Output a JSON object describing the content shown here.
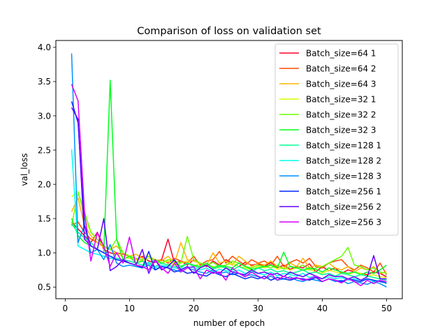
{
  "chart_data": {
    "type": "line",
    "title": "Comparison of loss on validation set",
    "xlabel": "number of epoch",
    "ylabel": "val_loss",
    "xlim": [
      -1.45,
      52.45
    ],
    "ylim": [
      0.33,
      4.1
    ],
    "xticks": [
      0,
      10,
      20,
      30,
      40,
      50
    ],
    "xtick_labels": [
      "0",
      "10",
      "20",
      "30",
      "40",
      "50"
    ],
    "yticks": [
      0.5,
      1.0,
      1.5,
      2.0,
      2.5,
      3.0,
      3.5,
      4.0
    ],
    "ytick_labels": [
      "0.5",
      "1.0",
      "1.5",
      "2.0",
      "2.5",
      "3.0",
      "3.5",
      "4.0"
    ],
    "grid": false,
    "legend_position": "top-right",
    "x": [
      1,
      2,
      3,
      4,
      5,
      6,
      7,
      8,
      9,
      10,
      11,
      12,
      13,
      14,
      15,
      16,
      17,
      18,
      19,
      20,
      21,
      22,
      23,
      24,
      25,
      26,
      27,
      28,
      29,
      30,
      31,
      32,
      33,
      34,
      35,
      36,
      37,
      38,
      39,
      40,
      41,
      42,
      43,
      44,
      45,
      46,
      47,
      48,
      49,
      50
    ],
    "series": [
      {
        "name": "Batch_size=64 1",
        "color": "#ff0029",
        "values": [
          1.45,
          1.35,
          1.25,
          1.15,
          1.3,
          1.05,
          1.0,
          0.98,
          0.95,
          0.92,
          0.9,
          0.95,
          0.88,
          0.86,
          0.9,
          1.2,
          0.85,
          0.88,
          0.82,
          0.9,
          0.85,
          0.8,
          0.88,
          0.82,
          0.9,
          0.85,
          0.8,
          0.86,
          0.82,
          0.84,
          0.8,
          0.86,
          0.78,
          0.82,
          0.76,
          0.8,
          0.78,
          0.84,
          0.72,
          0.8,
          0.74,
          0.78,
          0.7,
          0.75,
          0.72,
          0.7,
          0.68,
          0.72,
          0.7,
          0.65
        ]
      },
      {
        "name": "Batch_size=64 2",
        "color": "#ff4a00",
        "values": [
          1.4,
          1.45,
          1.3,
          1.2,
          1.15,
          1.1,
          1.05,
          1.0,
          0.98,
          0.95,
          0.92,
          0.9,
          0.95,
          0.88,
          0.9,
          0.85,
          0.92,
          0.88,
          0.85,
          0.95,
          0.82,
          0.88,
          0.9,
          1.02,
          0.85,
          0.95,
          0.88,
          0.82,
          0.9,
          0.85,
          0.88,
          0.82,
          0.95,
          0.8,
          0.86,
          0.9,
          0.85,
          0.92,
          0.8,
          0.78,
          0.85,
          0.88,
          0.9,
          0.8,
          0.75,
          0.82,
          0.78,
          0.72,
          0.85,
          0.68
        ]
      },
      {
        "name": "Batch_size=64 3",
        "color": "#ffb400",
        "values": [
          1.6,
          1.8,
          1.4,
          1.25,
          1.15,
          1.08,
          1.05,
          1.1,
          1.0,
          0.95,
          0.98,
          0.92,
          0.95,
          0.9,
          0.88,
          0.95,
          0.85,
          1.15,
          0.9,
          0.88,
          0.85,
          0.82,
          1.0,
          0.85,
          0.88,
          0.82,
          0.95,
          0.88,
          0.8,
          0.85,
          0.82,
          0.88,
          0.8,
          0.78,
          0.85,
          0.8,
          0.92,
          0.78,
          0.82,
          0.8,
          0.85,
          0.78,
          0.75,
          0.8,
          0.72,
          0.78,
          0.75,
          0.8,
          0.7,
          0.72
        ]
      },
      {
        "name": "Batch_size=32 1",
        "color": "#d7ff00",
        "values": [
          1.82,
          1.9,
          1.5,
          1.3,
          1.2,
          1.1,
          1.05,
          0.98,
          0.95,
          0.92,
          0.9,
          0.88,
          0.92,
          0.9,
          0.85,
          0.88,
          0.82,
          0.85,
          0.88,
          0.8,
          0.85,
          0.82,
          0.8,
          0.78,
          0.82,
          0.85,
          0.8,
          0.78,
          0.75,
          0.8,
          0.78,
          0.82,
          0.76,
          0.78,
          0.75,
          0.78,
          0.74,
          0.76,
          0.72,
          0.7,
          0.75,
          0.72,
          0.7,
          0.68,
          0.72,
          0.7,
          0.66,
          0.68,
          0.65,
          0.64
        ]
      },
      {
        "name": "Batch_size=32 2",
        "color": "#6aff00",
        "values": [
          1.4,
          1.88,
          1.6,
          1.3,
          1.2,
          1.1,
          1.05,
          1.2,
          1.0,
          0.95,
          0.92,
          0.9,
          0.95,
          0.88,
          0.85,
          0.9,
          0.88,
          0.85,
          1.24,
          0.9,
          0.85,
          0.82,
          0.86,
          0.8,
          0.82,
          0.88,
          0.85,
          0.8,
          0.78,
          0.82,
          0.8,
          0.78,
          0.82,
          0.76,
          0.8,
          0.78,
          0.82,
          0.75,
          0.78,
          0.8,
          0.85,
          0.9,
          0.95,
          1.08,
          0.82,
          0.8,
          0.75,
          0.78,
          0.72,
          0.7
        ]
      },
      {
        "name": "Batch_size=32 3",
        "color": "#00ff1e",
        "values": [
          1.5,
          1.25,
          1.15,
          1.1,
          1.05,
          1.0,
          3.52,
          1.2,
          0.9,
          0.95,
          0.85,
          0.88,
          0.82,
          0.9,
          0.85,
          0.82,
          0.88,
          0.8,
          0.85,
          0.82,
          0.8,
          0.85,
          0.78,
          0.82,
          0.8,
          0.78,
          0.85,
          0.8,
          0.76,
          0.78,
          0.8,
          0.82,
          0.78,
          1.01,
          0.8,
          0.78,
          0.75,
          0.78,
          0.76,
          0.72,
          0.78,
          0.75,
          0.72,
          0.7,
          0.72,
          0.68,
          0.72,
          0.7,
          0.75,
          0.82
        ]
      },
      {
        "name": "Batch_size=128 1",
        "color": "#00ff95",
        "values": [
          1.42,
          1.3,
          1.22,
          1.15,
          1.05,
          1.0,
          0.95,
          0.92,
          0.9,
          0.88,
          0.85,
          0.82,
          0.86,
          0.8,
          0.85,
          0.82,
          0.8,
          0.78,
          0.85,
          0.8,
          0.78,
          0.82,
          0.76,
          0.8,
          0.78,
          0.75,
          0.8,
          0.76,
          0.72,
          0.78,
          0.74,
          0.76,
          0.72,
          0.74,
          0.7,
          0.72,
          0.75,
          0.7,
          0.72,
          0.68,
          0.7,
          0.66,
          0.7,
          0.68,
          0.65,
          0.68,
          0.66,
          0.64,
          0.62,
          0.6
        ]
      },
      {
        "name": "Batch_size=128 2",
        "color": "#00fff1",
        "values": [
          2.51,
          1.1,
          1.05,
          1.0,
          0.98,
          0.95,
          0.92,
          0.9,
          0.88,
          0.85,
          0.82,
          0.8,
          0.85,
          0.78,
          0.82,
          0.8,
          0.78,
          0.76,
          0.8,
          0.78,
          0.75,
          0.78,
          0.72,
          0.76,
          0.74,
          0.72,
          0.75,
          0.7,
          0.72,
          0.7,
          0.68,
          0.72,
          0.66,
          0.7,
          0.68,
          0.66,
          0.7,
          0.64,
          0.66,
          0.62,
          0.65,
          0.62,
          0.64,
          0.6,
          0.62,
          0.6,
          0.62,
          0.58,
          0.6,
          0.55
        ]
      },
      {
        "name": "Batch_size=128 3",
        "color": "#0090ff",
        "values": [
          3.91,
          1.15,
          1.4,
          1.0,
          1.05,
          0.9,
          1.12,
          0.85,
          0.8,
          0.82,
          0.8,
          0.78,
          0.82,
          0.75,
          0.8,
          0.78,
          0.75,
          0.72,
          0.78,
          0.75,
          0.72,
          0.7,
          0.75,
          0.7,
          0.72,
          0.68,
          0.7,
          0.66,
          0.68,
          0.65,
          0.62,
          0.66,
          0.6,
          0.62,
          0.65,
          0.6,
          0.58,
          0.62,
          0.6,
          0.58,
          0.62,
          0.58,
          0.6,
          0.55,
          0.58,
          0.56,
          0.54,
          0.58,
          0.55,
          0.5
        ]
      },
      {
        "name": "Batch_size=256 1",
        "color": "#0028ff",
        "values": [
          3.21,
          2.9,
          1.4,
          1.1,
          1.05,
          1.0,
          0.95,
          0.9,
          0.88,
          0.85,
          0.82,
          0.78,
          1.02,
          0.75,
          0.8,
          0.78,
          0.72,
          0.75,
          0.7,
          0.72,
          0.68,
          0.66,
          0.72,
          0.68,
          0.65,
          0.7,
          0.66,
          0.62,
          0.65,
          0.62,
          0.66,
          0.6,
          0.64,
          0.62,
          0.6,
          0.63,
          0.62,
          0.6,
          0.64,
          0.58,
          0.62,
          0.6,
          0.58,
          0.62,
          0.6,
          0.58,
          0.62,
          0.6,
          0.58,
          0.56
        ]
      },
      {
        "name": "Batch_size=256 2",
        "color": "#6200ff",
        "values": [
          3.12,
          2.95,
          1.2,
          1.1,
          1.05,
          1.5,
          0.74,
          0.8,
          0.9,
          0.85,
          0.82,
          1.05,
          0.7,
          0.9,
          0.75,
          0.8,
          0.9,
          0.75,
          0.8,
          0.7,
          0.78,
          0.82,
          0.75,
          0.7,
          0.78,
          0.72,
          0.7,
          0.68,
          0.75,
          0.7,
          0.72,
          0.68,
          0.7,
          0.65,
          0.72,
          0.68,
          0.65,
          0.7,
          0.66,
          0.62,
          0.68,
          0.65,
          0.66,
          0.62,
          0.65,
          0.6,
          0.65,
          0.96,
          0.62,
          0.62
        ]
      },
      {
        "name": "Batch_size=256 3",
        "color": "#d600ff",
        "values": [
          3.46,
          3.22,
          1.6,
          0.88,
          1.3,
          1.1,
          0.8,
          1.0,
          0.85,
          1.23,
          0.82,
          0.8,
          0.75,
          0.9,
          0.78,
          0.7,
          0.85,
          0.72,
          0.78,
          0.8,
          0.62,
          0.75,
          0.7,
          0.72,
          0.6,
          0.78,
          0.7,
          0.65,
          0.72,
          0.66,
          0.62,
          0.7,
          0.6,
          0.66,
          0.62,
          0.64,
          0.6,
          0.62,
          0.66,
          0.58,
          0.62,
          0.6,
          0.56,
          0.62,
          0.58,
          0.52,
          0.6,
          0.55,
          0.6,
          0.58
        ]
      }
    ]
  }
}
